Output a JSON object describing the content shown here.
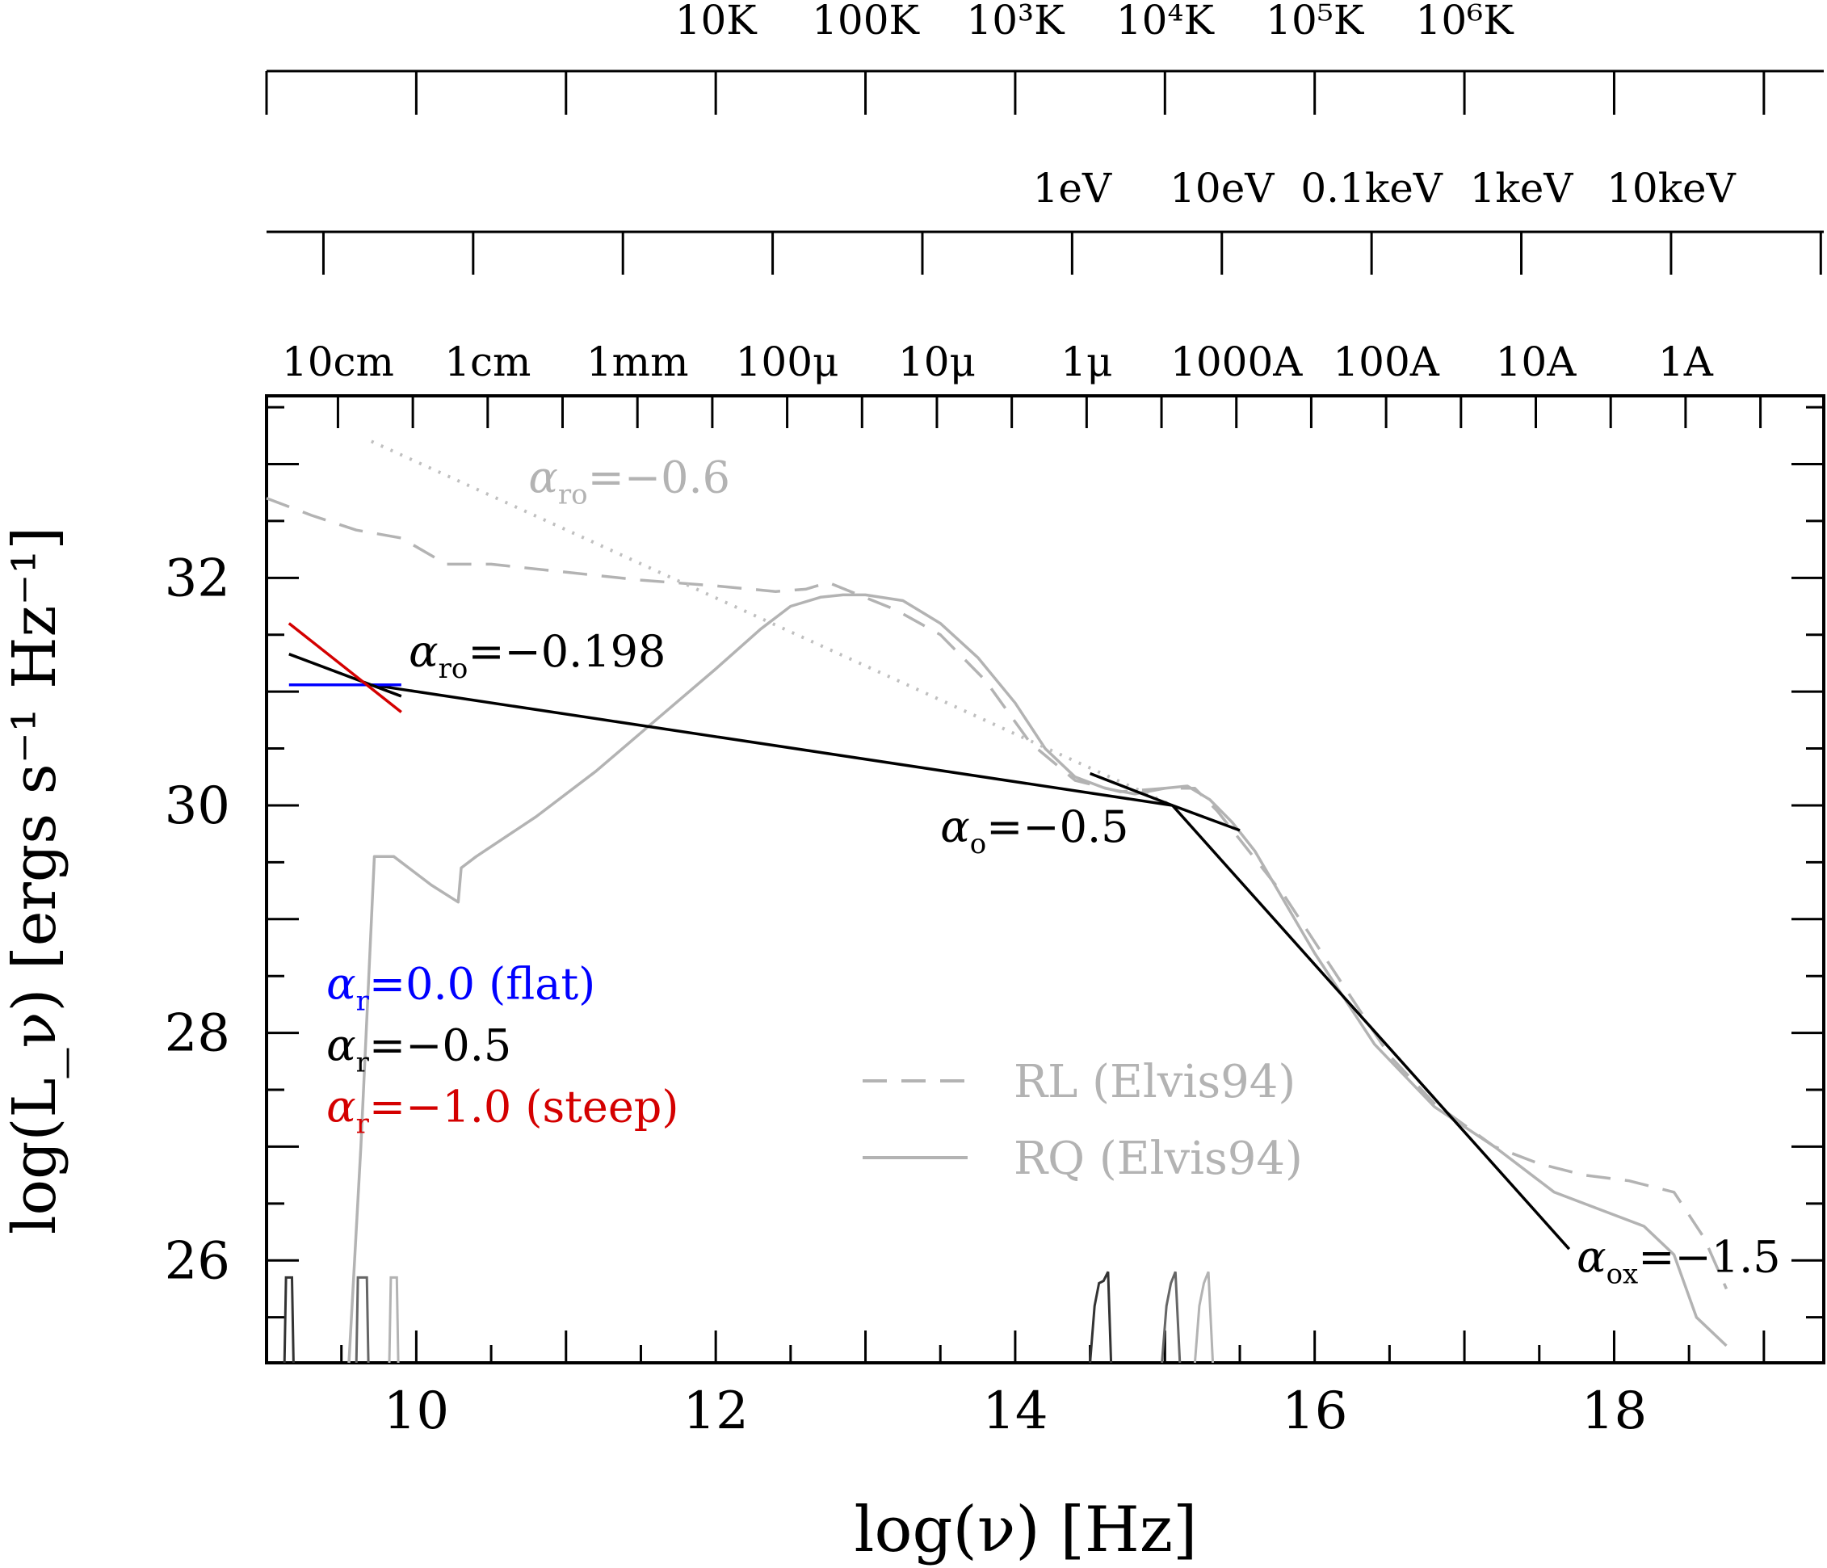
{
  "chart_data": {
    "type": "line",
    "xlabel": "log(ν) [Hz]",
    "ylabel": "log(L_ν) [ergs s⁻¹ Hz⁻¹]",
    "xlim": [
      9,
      19.4
    ],
    "ylim": [
      25.1,
      33.6
    ],
    "x_ticks": [
      10,
      12,
      14,
      16,
      18
    ],
    "y_ticks": [
      26,
      28,
      30,
      32
    ],
    "top_axes": [
      {
        "name": "wavelength",
        "labels": [
          {
            "text": "10cm",
            "x": 9.477
          },
          {
            "text": "1cm",
            "x": 10.477
          },
          {
            "text": "1mm",
            "x": 11.477
          },
          {
            "text": "100μ",
            "x": 12.477
          },
          {
            "text": "10μ",
            "x": 13.477
          },
          {
            "text": "1μ",
            "x": 14.477
          },
          {
            "text": "1000A",
            "x": 15.477
          },
          {
            "text": "100A",
            "x": 16.477
          },
          {
            "text": "10A",
            "x": 17.477
          },
          {
            "text": "1A",
            "x": 18.477
          }
        ]
      },
      {
        "name": "energy",
        "labels": [
          {
            "text": "1eV",
            "x": 14.38
          },
          {
            "text": "10eV",
            "x": 15.38
          },
          {
            "text": "0.1keV",
            "x": 16.38
          },
          {
            "text": "1keV",
            "x": 17.38
          },
          {
            "text": "10keV",
            "x": 18.38
          }
        ]
      },
      {
        "name": "temperature",
        "labels": [
          {
            "text": "10K",
            "x": 12.0
          },
          {
            "text": "100K",
            "x": 13.0
          },
          {
            "text": "10³K",
            "x": 14.0
          },
          {
            "text": "10⁴K",
            "x": 15.0
          },
          {
            "text": "10⁵K",
            "x": 16.0
          },
          {
            "text": "10⁶K",
            "x": 17.0
          }
        ]
      }
    ],
    "series": [
      {
        "name": "RL (Elvis94)",
        "style": "dashed",
        "color": "#b3b3b3",
        "x": [
          9.0,
          9.3,
          9.6,
          9.9,
          10.2,
          10.5,
          11.0,
          11.5,
          12.0,
          12.4,
          12.6,
          12.75,
          12.9,
          13.2,
          13.5,
          13.8,
          14.1,
          14.4,
          14.7,
          15.0,
          15.2,
          15.35,
          15.5,
          15.8,
          16.2,
          16.5,
          16.8,
          17.2,
          17.5,
          17.8,
          18.1,
          18.4,
          18.6,
          18.75
        ],
        "values": [
          32.7,
          32.55,
          32.42,
          32.35,
          32.12,
          32.12,
          32.05,
          31.98,
          31.93,
          31.88,
          31.9,
          31.96,
          31.88,
          31.72,
          31.5,
          31.1,
          30.55,
          30.22,
          30.12,
          30.15,
          30.15,
          29.95,
          29.7,
          29.2,
          28.4,
          27.8,
          27.38,
          27.0,
          26.85,
          26.75,
          26.7,
          26.6,
          26.2,
          25.75
        ]
      },
      {
        "name": "RQ (Elvis94)",
        "style": "solid",
        "color": "#b3b3b3",
        "x": [
          9.55,
          9.63,
          9.72,
          9.85,
          9.95,
          10.1,
          10.28,
          10.3,
          10.4,
          10.8,
          11.2,
          11.6,
          12.0,
          12.3,
          12.5,
          12.7,
          12.85,
          13.0,
          13.25,
          13.5,
          13.75,
          14.0,
          14.2,
          14.4,
          14.6,
          14.8,
          15.0,
          15.15,
          15.3,
          15.45,
          15.6,
          16.0,
          16.4,
          16.8,
          17.2,
          17.6,
          17.9,
          18.2,
          18.4,
          18.55,
          18.75
        ],
        "values": [
          25.1,
          27.0,
          29.55,
          29.55,
          29.45,
          29.3,
          29.15,
          29.45,
          29.55,
          29.9,
          30.3,
          30.75,
          31.2,
          31.55,
          31.75,
          31.83,
          31.85,
          31.85,
          31.8,
          31.6,
          31.3,
          30.9,
          30.5,
          30.25,
          30.15,
          30.1,
          30.15,
          30.17,
          30.05,
          29.85,
          29.6,
          28.7,
          27.9,
          27.35,
          27.0,
          26.6,
          26.45,
          26.3,
          26.05,
          25.5,
          25.25
        ]
      },
      {
        "name": "α_ro=-0.6",
        "style": "dotted",
        "color": "#bfbfbf",
        "x": [
          9.7,
          15.05
        ],
        "values": [
          33.2,
          30.0
        ]
      },
      {
        "name": "α_ro=-0.198",
        "style": "solid",
        "color": "#000000",
        "x": [
          9.7,
          15.05
        ],
        "values": [
          31.06,
          30.0
        ]
      },
      {
        "name": "α_o=-0.5",
        "style": "solid",
        "color": "#000000",
        "x": [
          14.5,
          15.05,
          15.5
        ],
        "values": [
          30.28,
          30.0,
          29.78
        ]
      },
      {
        "name": "α_ox=-1.5",
        "style": "solid",
        "color": "#000000",
        "x": [
          15.05,
          17.7
        ],
        "values": [
          30.0,
          26.1
        ]
      },
      {
        "name": "α_r=0.0 (flat)",
        "style": "solid",
        "color": "#0000ff",
        "x": [
          9.15,
          9.9
        ],
        "values": [
          31.06,
          31.06
        ]
      },
      {
        "name": "α_r=-0.5",
        "style": "solid",
        "color": "#000000",
        "x": [
          9.15,
          9.9
        ],
        "values": [
          31.33,
          30.96
        ]
      },
      {
        "name": "α_r=-1.0 (steep)",
        "style": "solid",
        "color": "#d40000",
        "x": [
          9.15,
          9.9
        ],
        "values": [
          31.6,
          30.82
        ]
      }
    ],
    "filter_curves": [
      {
        "color": "#333333",
        "x": [
          9.12,
          9.13,
          9.17,
          9.18
        ],
        "values": [
          25.1,
          25.85,
          25.85,
          25.1
        ]
      },
      {
        "color": "#666666",
        "x": [
          9.6,
          9.61,
          9.67,
          9.68
        ],
        "values": [
          25.1,
          25.85,
          25.85,
          25.1
        ]
      },
      {
        "color": "#b3b3b3",
        "x": [
          9.82,
          9.83,
          9.87,
          9.88
        ],
        "values": [
          25.1,
          25.85,
          25.85,
          25.1
        ]
      },
      {
        "color": "#333333",
        "x": [
          14.5,
          14.53,
          14.56,
          14.59,
          14.62,
          14.64
        ],
        "values": [
          25.1,
          25.6,
          25.8,
          25.82,
          25.9,
          25.1
        ]
      },
      {
        "color": "#666666",
        "x": [
          14.98,
          15.01,
          15.04,
          15.07,
          15.1
        ],
        "values": [
          25.1,
          25.6,
          25.8,
          25.9,
          25.1
        ]
      },
      {
        "color": "#b3b3b3",
        "x": [
          15.2,
          15.23,
          15.26,
          15.29,
          15.32
        ],
        "values": [
          25.1,
          25.6,
          25.8,
          25.9,
          25.1
        ]
      }
    ],
    "annotations": [
      {
        "text_main": "α",
        "text_sub": "ro",
        "text_rest": "=−0.6",
        "color": "#b3b3b3",
        "x": 10.75,
        "y": 32.75
      },
      {
        "text_main": "α",
        "text_sub": "ro",
        "text_rest": "=−0.198",
        "color": "#000000",
        "x": 9.95,
        "y": 31.22
      },
      {
        "text_main": "α",
        "text_sub": "o",
        "text_rest": "=−0.5",
        "color": "#000000",
        "x": 13.5,
        "y": 29.68
      },
      {
        "text_main": "α",
        "text_sub": "ox",
        "text_rest": "=−1.5",
        "color": "#000000",
        "x": 17.75,
        "y": 25.9
      },
      {
        "text_main": "α",
        "text_sub": "r",
        "text_rest": "=0.0   (flat)",
        "color": "#0000ff",
        "x": 9.4,
        "y": 28.3
      },
      {
        "text_main": "α",
        "text_sub": "r",
        "text_rest": "=−0.5",
        "color": "#000000",
        "x": 9.4,
        "y": 27.76
      },
      {
        "text_main": "α",
        "text_sub": "r",
        "text_rest": "=−1.0 (steep)",
        "color": "#d40000",
        "x": 9.4,
        "y": 27.22
      }
    ],
    "legend": {
      "placement": "lower-center",
      "entries": [
        {
          "label": "RL (Elvis94)",
          "style": "dashed",
          "color": "#b3b3b3"
        },
        {
          "label": "RQ (Elvis94)",
          "style": "solid",
          "color": "#b3b3b3"
        }
      ]
    }
  }
}
